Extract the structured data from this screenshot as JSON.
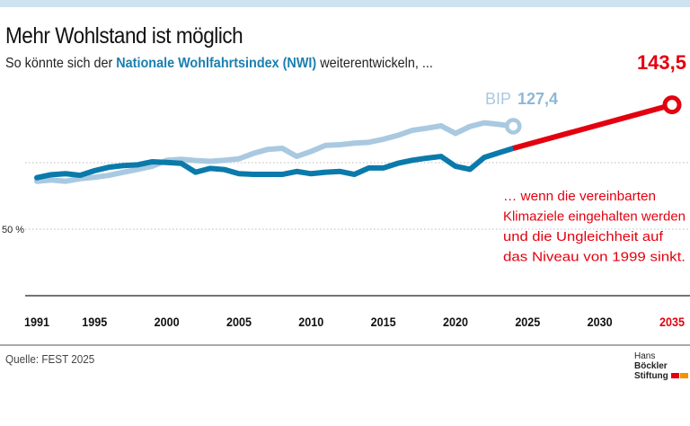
{
  "header": {
    "title": "Mehr Wohlstand ist möglich",
    "subtitle_pre": "So könnte sich der ",
    "subtitle_highlight": "Nationale Wohlfahrtsindex (NWI)",
    "subtitle_post": " weiterentwickeln, ..."
  },
  "footer": {
    "source": "Quelle: FEST 2025",
    "logo_line1_a": "Hans ",
    "logo_line1_b": "Böckler",
    "logo_line2": "Stiftung"
  },
  "colors": {
    "nwi": "#0a7aab",
    "bip": "#a9c9e0",
    "projection": "#e3000f",
    "topbar": "#cde3ef",
    "logo_red": "#e3000f",
    "logo_orange": "#f39200"
  },
  "chart_data": {
    "type": "line",
    "ylim": [
      0,
      150
    ],
    "xlim": [
      1991,
      2035
    ],
    "y_ticks": [
      {
        "value": 50,
        "label": "50 %"
      },
      {
        "value": 100,
        "label": ""
      }
    ],
    "x_ticks": [
      "1991",
      "1995",
      "2000",
      "2005",
      "2010",
      "2015",
      "2020",
      "2025",
      "2030",
      "2035"
    ],
    "grid": "dotted horizontal",
    "series": [
      {
        "name": "BIP",
        "end_label": "127,4",
        "x": [
          1991,
          1992,
          1993,
          1994,
          1995,
          1996,
          1997,
          1998,
          1999,
          2000,
          2001,
          2002,
          2003,
          2004,
          2005,
          2006,
          2007,
          2008,
          2009,
          2010,
          2011,
          2012,
          2013,
          2014,
          2015,
          2016,
          2017,
          2018,
          2019,
          2020,
          2021,
          2022,
          2023,
          2024
        ],
        "y": [
          86,
          87,
          86,
          88,
          89,
          90.5,
          92.8,
          95,
          97.3,
          101.8,
          102.5,
          101.6,
          101,
          101.8,
          102.9,
          107,
          110,
          110.8,
          104.7,
          108.5,
          113,
          113.5,
          114.7,
          115.3,
          117.6,
          120.5,
          124.3,
          125.9,
          127.7,
          122,
          127.2,
          130,
          128.8,
          127.4
        ]
      },
      {
        "name": "NWI",
        "x": [
          1991,
          1992,
          1993,
          1994,
          1995,
          1996,
          1997,
          1998,
          1999,
          2000,
          2001,
          2002,
          2003,
          2004,
          2005,
          2006,
          2007,
          2008,
          2009,
          2010,
          2011,
          2012,
          2013,
          2014,
          2015,
          2016,
          2017,
          2018,
          2019,
          2020,
          2021,
          2022,
          2023,
          2024
        ],
        "y": [
          88.7,
          91,
          91.7,
          90.5,
          94,
          96.6,
          97.8,
          98.4,
          100.7,
          100.2,
          99.5,
          92.8,
          95.7,
          94.8,
          91.7,
          91.2,
          91.2,
          91.2,
          93.4,
          91.7,
          92.8,
          93.4,
          91.2,
          96,
          96,
          99.5,
          101.8,
          103.4,
          104.7,
          97.3,
          95,
          104,
          107.4,
          110.8
        ]
      },
      {
        "name": "NWI-Projektion",
        "end_label": "143,5",
        "x": [
          2024,
          2035
        ],
        "y": [
          110.8,
          143.5
        ]
      }
    ],
    "annotation": [
      "… wenn die vereinbarten",
      "Klimaziele eingehalten werden",
      "und die Ungleichheit auf",
      "das Niveau von 1999 sinkt."
    ]
  }
}
